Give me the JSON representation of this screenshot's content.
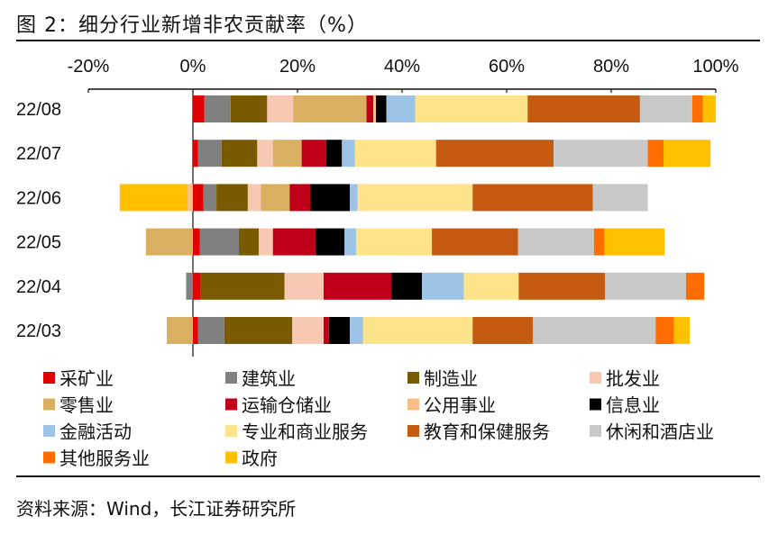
{
  "header": {
    "title": "图 2：细分行业新增非农贡献率（%）"
  },
  "footer": {
    "source": "资料来源：Wind，长江证券研究所"
  },
  "chart_data": {
    "type": "bar",
    "orientation": "horizontal",
    "stacked": true,
    "x_ticks": [
      "-20%",
      "0%",
      "20%",
      "40%",
      "60%",
      "80%",
      "100%"
    ],
    "xlim": [
      -20,
      100
    ],
    "grid": false,
    "legend_position": "bottom",
    "categories": [
      "22/08",
      "22/07",
      "22/06",
      "22/05",
      "22/04",
      "22/03"
    ],
    "series": [
      {
        "name": "采矿业",
        "color": "#e00000",
        "values": [
          2.2,
          1.0,
          2.0,
          1.3,
          1.5,
          1.0
        ]
      },
      {
        "name": "建筑业",
        "color": "#808080",
        "values": [
          5.0,
          4.5,
          2.5,
          7.5,
          -1.3,
          5.0
        ]
      },
      {
        "name": "制造业",
        "color": "#7a5a00",
        "values": [
          7.0,
          6.8,
          6.0,
          3.8,
          16.0,
          13.0
        ]
      },
      {
        "name": "批发业",
        "color": "#f7c9b2",
        "values": [
          5.0,
          3.0,
          2.5,
          2.7,
          7.5,
          6.0
        ]
      },
      {
        "name": "零售业",
        "color": "#d9b062",
        "values": [
          14.0,
          5.5,
          5.5,
          -9.0,
          0.0,
          -5.0
        ]
      },
      {
        "name": "运输仓储业",
        "color": "#c00018",
        "values": [
          1.3,
          4.7,
          4.0,
          8.2,
          13.0,
          1.0
        ]
      },
      {
        "name": "公用事业",
        "color": "#f9bd86",
        "values": [
          0.5,
          0.0,
          -1.0,
          0.0,
          0.0,
          0.0
        ]
      },
      {
        "name": "信息业",
        "color": "#000000",
        "values": [
          2.0,
          3.0,
          7.5,
          5.5,
          5.8,
          4.0
        ]
      },
      {
        "name": "金融活动",
        "color": "#9dc3e6",
        "values": [
          5.5,
          2.5,
          1.5,
          2.2,
          8.0,
          2.5
        ]
      },
      {
        "name": "专业和商业服务",
        "color": "#ffe38a",
        "values": [
          21.5,
          15.5,
          22.0,
          14.5,
          10.5,
          21.0
        ]
      },
      {
        "name": "教育和保健服务",
        "color": "#c55a11",
        "values": [
          21.5,
          22.5,
          23.0,
          16.5,
          16.5,
          11.5
        ]
      },
      {
        "name": "休闲和酒店业",
        "color": "#c8c8c8",
        "values": [
          10.0,
          18.0,
          10.5,
          14.5,
          15.5,
          23.5
        ]
      },
      {
        "name": "其他服务业",
        "color": "#ff6d00",
        "values": [
          2.0,
          3.0,
          0.0,
          2.0,
          3.5,
          3.5
        ]
      },
      {
        "name": "政府",
        "color": "#ffc000",
        "values": [
          2.5,
          9.0,
          -13.0,
          11.5,
          0.0,
          3.0
        ]
      }
    ]
  }
}
